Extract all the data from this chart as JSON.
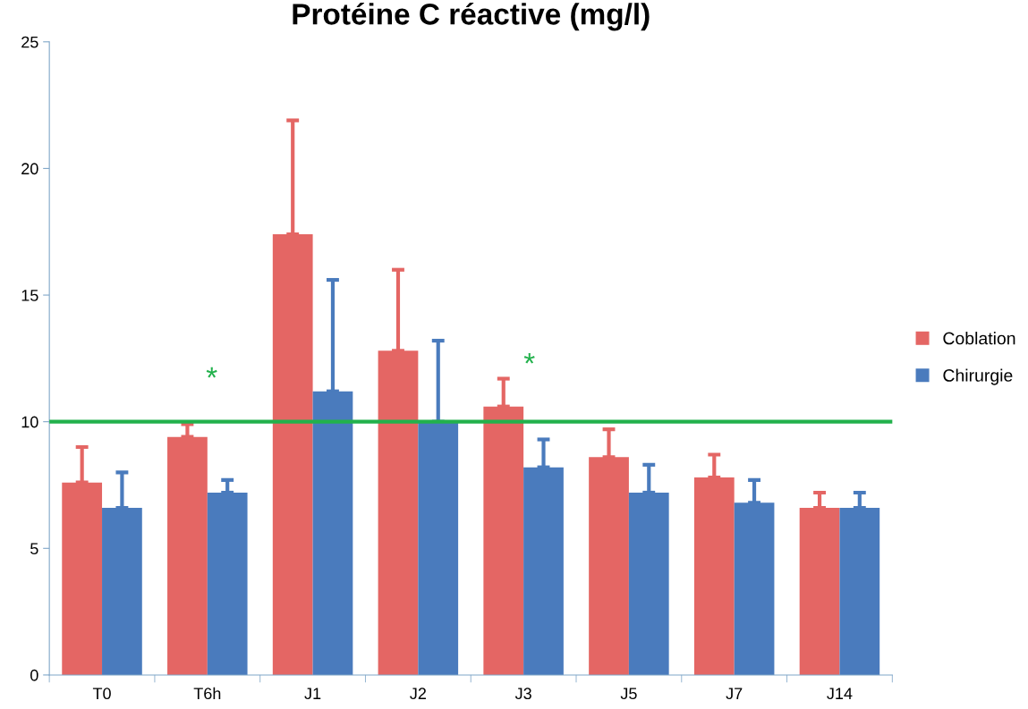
{
  "chart_data": {
    "type": "bar",
    "title": "Protéine C réactive (mg/l)",
    "categories": [
      "T0",
      "T6h",
      "J1",
      "J2",
      "J3",
      "J5",
      "J7",
      "J14"
    ],
    "series": [
      {
        "name": "Coblation",
        "color": "#e46664",
        "values": [
          7.6,
          9.4,
          17.4,
          12.8,
          10.6,
          8.6,
          7.8,
          6.6
        ],
        "errors": [
          [
            7.6,
            9.0
          ],
          [
            9.4,
            9.9
          ],
          [
            17.4,
            21.9
          ],
          [
            12.8,
            16.0
          ],
          [
            10.6,
            11.7
          ],
          [
            8.6,
            9.7
          ],
          [
            7.8,
            8.7
          ],
          [
            6.6,
            7.2
          ]
        ]
      },
      {
        "name": "Chirurgie",
        "color": "#4a7bbd",
        "values": [
          6.6,
          7.2,
          11.2,
          10.0,
          8.2,
          7.2,
          6.8,
          6.6
        ],
        "errors": [
          [
            6.6,
            8.0
          ],
          [
            7.2,
            7.7
          ],
          [
            11.2,
            15.6
          ],
          [
            10.0,
            13.2
          ],
          [
            8.2,
            9.3
          ],
          [
            7.2,
            8.3
          ],
          [
            6.8,
            7.7
          ],
          [
            6.6,
            7.2
          ]
        ]
      }
    ],
    "ylim": [
      0,
      25
    ],
    "yticks": [
      0,
      5,
      10,
      15,
      20,
      25
    ],
    "ref_lines": [
      {
        "axis": "y",
        "value": 10,
        "color": "#22b14c"
      }
    ],
    "annotations": [
      "*",
      "*"
    ],
    "grid": false,
    "legend": "right"
  }
}
